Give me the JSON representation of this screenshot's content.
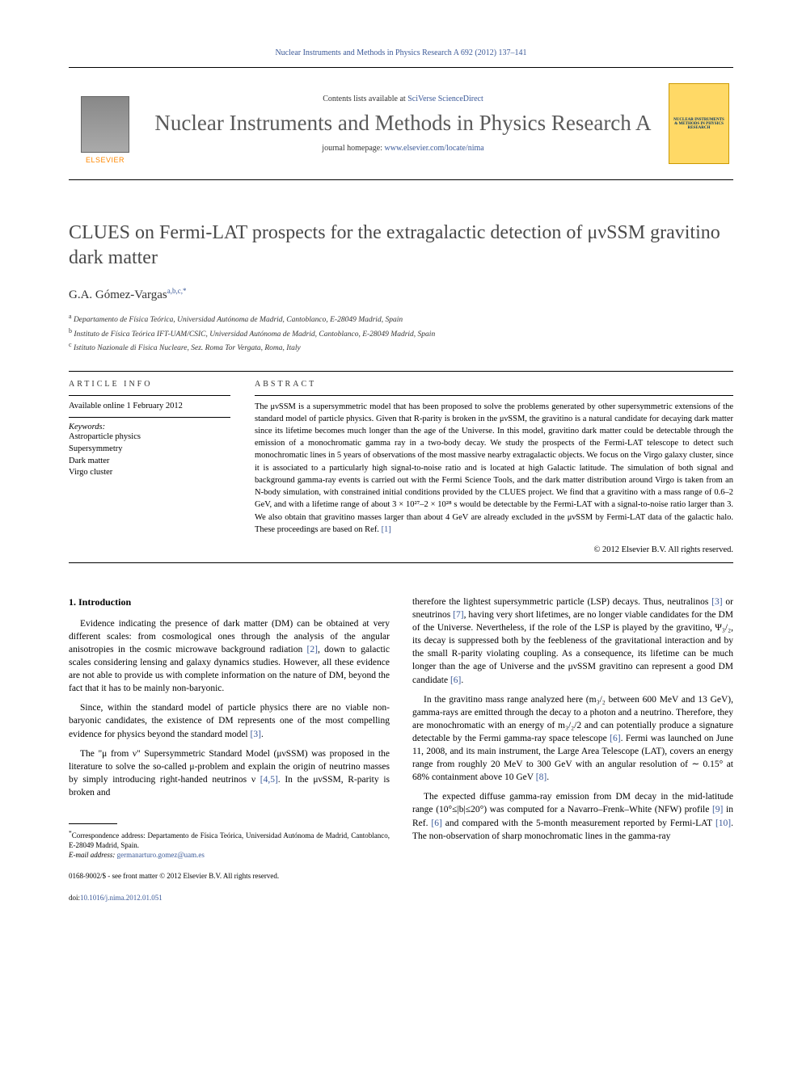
{
  "header_citation": "Nuclear Instruments and Methods in Physics Research A 692 (2012) 137–141",
  "masthead": {
    "contents_prefix": "Contents lists available at ",
    "contents_link": "SciVerse ScienceDirect",
    "journal_name": "Nuclear Instruments and Methods in Physics Research A",
    "homepage_prefix": "journal homepage: ",
    "homepage_link": "www.elsevier.com/locate/nima",
    "elsevier_label": "ELSEVIER",
    "cover_text": "NUCLEAR INSTRUMENTS & METHODS IN PHYSICS RESEARCH"
  },
  "title": "CLUES on Fermi-LAT prospects for the extragalactic detection of μνSSM gravitino dark matter",
  "author": {
    "name": "G.A. Gómez-Vargas",
    "sup": "a,b,c,",
    "marker": "*"
  },
  "affiliations": [
    {
      "sup": "a",
      "text": "Departamento de Física Teórica, Universidad Autónoma de Madrid, Cantoblanco, E-28049 Madrid, Spain"
    },
    {
      "sup": "b",
      "text": "Instituto de Física Teórica IFT-UAM/CSIC, Universidad Autónoma de Madrid, Cantoblanco, E-28049 Madrid, Spain"
    },
    {
      "sup": "c",
      "text": "Istituto Nazionale di Fisica Nucleare, Sez. Roma Tor Vergata, Roma, Italy"
    }
  ],
  "article_info": {
    "heading": "ARTICLE INFO",
    "available": "Available online 1 February 2012",
    "keywords_label": "Keywords:",
    "keywords": [
      "Astroparticle physics",
      "Supersymmetry",
      "Dark matter",
      "Virgo cluster"
    ]
  },
  "abstract": {
    "heading": "ABSTRACT",
    "text": "The μνSSM is a supersymmetric model that has been proposed to solve the problems generated by other supersymmetric extensions of the standard model of particle physics. Given that R-parity is broken in the μνSSM, the gravitino is a natural candidate for decaying dark matter since its lifetime becomes much longer than the age of the Universe. In this model, gravitino dark matter could be detectable through the emission of a monochromatic gamma ray in a two-body decay. We study the prospects of the Fermi-LAT telescope to detect such monochromatic lines in 5 years of observations of the most massive nearby extragalactic objects. We focus on the Virgo galaxy cluster, since it is associated to a particularly high signal-to-noise ratio and is located at high Galactic latitude. The simulation of both signal and background gamma-ray events is carried out with the Fermi Science Tools, and the dark matter distribution around Virgo is taken from an N-body simulation, with constrained initial conditions provided by the CLUES project. We find that a gravitino with a mass range of 0.6–2 GeV, and with a lifetime range of about 3 × 10²⁷–2 × 10²⁸ s would be detectable by the Fermi-LAT with a signal-to-noise ratio larger than 3. We also obtain that gravitino masses larger than about 4 GeV are already excluded in the μνSSM by Fermi-LAT data of the galactic halo. These proceedings are based on Ref. ",
    "ref": "[1]",
    "copyright": "© 2012 Elsevier B.V. All rights reserved."
  },
  "section1": {
    "heading": "1.  Introduction",
    "p1": "Evidence indicating the presence of dark matter (DM) can be obtained at very different scales: from cosmological ones through the analysis of the angular anisotropies in the cosmic microwave background radiation ",
    "p1_ref": "[2]",
    "p1_cont": ", down to galactic scales considering lensing and galaxy dynamics studies. However, all these evidence are not able to provide us with complete information on the nature of DM, beyond the fact that it has to be mainly non-baryonic.",
    "p2": "Since, within the standard model of particle physics there are no viable non-baryonic candidates, the existence of DM represents one of the most compelling evidence for physics beyond the standard model ",
    "p2_ref": "[3]",
    "p2_end": ".",
    "p3": "The \"μ from ν\" Supersymmetric Standard Model (μνSSM) was proposed in the literature to solve the so-called μ-problem and explain the origin of neutrino masses by simply introducing right-handed neutrinos ν ",
    "p3_ref": "[4,5]",
    "p3_cont": ". In the μνSSM, R-parity is broken and"
  },
  "col2": {
    "p1": "therefore the lightest supersymmetric particle (LSP) decays. Thus, neutralinos ",
    "p1_ref1": "[3]",
    "p1_mid": " or sneutrinos ",
    "p1_ref2": "[7]",
    "p1_cont": ", having very short lifetimes, are no longer viable candidates for the DM of the Universe. Nevertheless, if the role of the LSP is played by the gravitino, Ψ₃/₂, its decay is suppressed both by the feebleness of the gravitational interaction and by the small R-parity violating coupling. As a consequence, its lifetime can be much longer than the age of Universe and the μνSSM gravitino can represent a good DM candidate ",
    "p1_ref3": "[6]",
    "p1_end": ".",
    "p2": "In the gravitino mass range analyzed here (m₃/₂ between 600 MeV and 13 GeV), gamma-rays are emitted through the decay to a photon and a neutrino. Therefore, they are monochromatic with an energy of m₃/₂/2 and can potentially produce a signature detectable by the Fermi gamma-ray space telescope ",
    "p2_ref": "[6]",
    "p2_cont": ". Fermi was launched on June 11, 2008, and its main instrument, the Large Area Telescope (LAT), covers an energy range from roughly 20 MeV to 300 GeV with an angular resolution of ∼ 0.15° at 68% containment above 10 GeV ",
    "p2_ref2": "[8]",
    "p2_end": ".",
    "p3": "The expected diffuse gamma-ray emission from DM decay in the mid-latitude range (10°≤|b|≤20°) was computed for a Navarro–Frenk–White (NFW) profile ",
    "p3_ref1": "[9]",
    "p3_mid": " in Ref. ",
    "p3_ref2": "[6]",
    "p3_mid2": " and compared with the 5-month measurement reported by Fermi-LAT ",
    "p3_ref3": "[10]",
    "p3_cont": ". The non-observation of sharp monochromatic lines in the gamma-ray"
  },
  "footnote": {
    "marker": "*",
    "text": "Correspondence address: Departamento de Física Teórica, Universidad Autónoma de Madrid, Cantoblanco, E-28049 Madrid, Spain.",
    "email_label": "E-mail address: ",
    "email": "germanarturo.gomez@uam.es"
  },
  "footer": {
    "issn": "0168-9002/$ - see front matter © 2012 Elsevier B.V. All rights reserved.",
    "doi_label": "doi:",
    "doi": "10.1016/j.nima.2012.01.051"
  },
  "colors": {
    "link": "#3b5998",
    "heading_gray": "#4a4a4a",
    "elsevier_orange": "#ff8800",
    "cover_bg": "#ffd966"
  }
}
